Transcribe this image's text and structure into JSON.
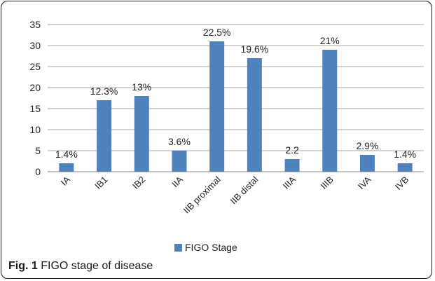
{
  "chart_data": {
    "type": "bar",
    "categories": [
      "IA",
      "IB1",
      "IB2",
      "IIA",
      "IIB proximal",
      "IIB distal",
      "IIIA",
      "IIIB",
      "IVA",
      "IVB"
    ],
    "series": [
      {
        "name": "FIGO Stage",
        "values": [
          2,
          17,
          18,
          5,
          31,
          27,
          3,
          29,
          4,
          2
        ]
      }
    ],
    "data_labels": [
      "1.4%",
      "12.3%",
      "13%",
      "3.6%",
      "22.5%",
      "19.6%",
      "2.2",
      "21%",
      "2.9%",
      "1.4%"
    ],
    "ylim": [
      0,
      35
    ],
    "yticks": [
      0,
      5,
      10,
      15,
      20,
      25,
      30,
      35
    ],
    "grid": true,
    "legend": "bottom",
    "bar_color": "#4f81bd",
    "grid_color": "#a6a6a6"
  },
  "caption": {
    "label": "Fig. 1",
    "text": "FIGO stage of disease"
  }
}
